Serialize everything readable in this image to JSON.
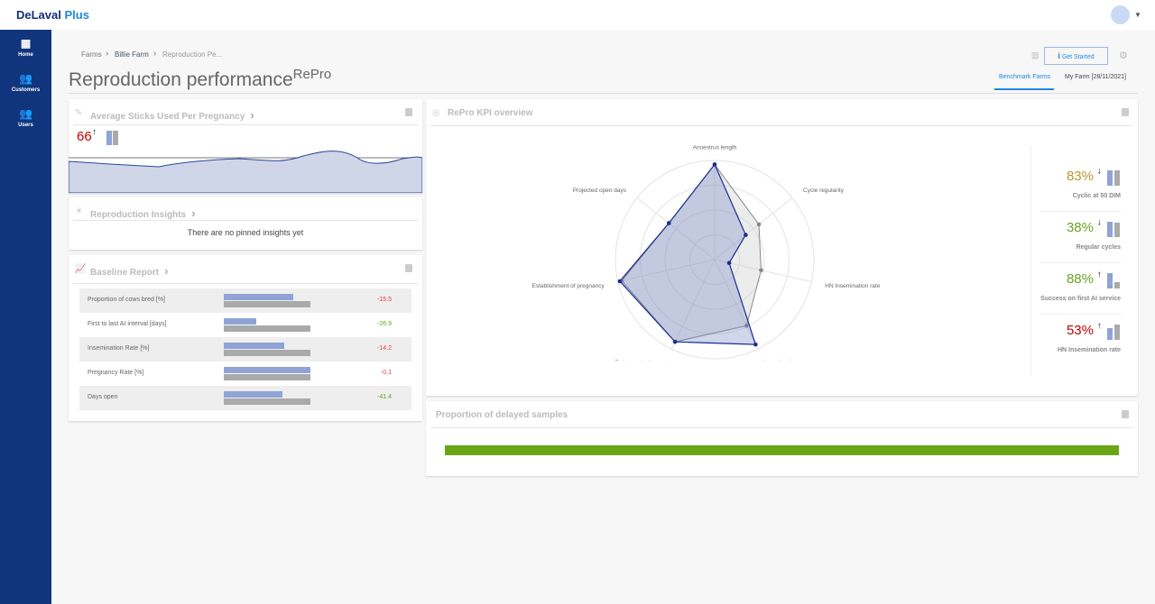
{
  "app": {
    "brand": "DeLaval",
    "brand_accent": "Plus"
  },
  "sidebar": {
    "items": [
      {
        "label": "Home",
        "icon": "grid-icon"
      },
      {
        "label": "Customers",
        "icon": "people-icon"
      },
      {
        "label": "Users",
        "icon": "people-icon"
      }
    ]
  },
  "breadcrumb": [
    "Farms",
    "Billie Farm",
    "Reproduction Pe..."
  ],
  "page": {
    "title": "Reproduction performance",
    "title_sup": "RePro"
  },
  "header": {
    "get_started": "Get Started",
    "tabs": [
      {
        "label": "Benchmark Farms",
        "active": true
      },
      {
        "label": "My Farm [28/11/2021]",
        "active": false
      }
    ]
  },
  "sticks": {
    "title": "Average Sticks Used Per Pregnancy",
    "value": "66",
    "trend": "up",
    "color": "#c00000"
  },
  "insights": {
    "title": "Reproduction Insights",
    "empty": "There are no pinned insights yet"
  },
  "baseline": {
    "title": "Baseline Report",
    "rows": [
      {
        "label": "Proportion of cows bred [%]",
        "farm": 0.8,
        "bench": 1,
        "value": "-15.5",
        "color": "#e53935"
      },
      {
        "label": "First to last AI interval [days]",
        "farm": 0.37,
        "bench": 1,
        "value": "-26.9",
        "color": "#6aa121"
      },
      {
        "label": "Insemination Rate [%]",
        "farm": 0.7,
        "bench": 1,
        "value": "-14.2",
        "color": "#e53935"
      },
      {
        "label": "Pregnancy Rate [%]",
        "farm": 1,
        "bench": 1,
        "value": "-0.1",
        "color": "#e53935"
      },
      {
        "label": "Days open",
        "farm": 0.68,
        "bench": 1,
        "value": "-41.4",
        "color": "#6aa121"
      }
    ]
  },
  "kpi": {
    "title": "RePro KPI overview",
    "cards": [
      {
        "value": "83%",
        "trend": "down",
        "label": "Cyclic at 50 DIM",
        "color": "#b8962e",
        "farm": 1,
        "bench": 1
      },
      {
        "value": "38%",
        "trend": "down",
        "label": "Regular cycles",
        "color": "#6aa121",
        "farm": 1,
        "bench": 0.95
      },
      {
        "value": "88%",
        "trend": "up",
        "label": "Success on first AI service",
        "color": "#6aa121",
        "farm": 1,
        "bench": 0.4
      },
      {
        "value": "53%",
        "trend": "up",
        "label": "HN Insemination rate",
        "color": "#c00000",
        "farm": 0.75,
        "bench": 1
      }
    ]
  },
  "chart_data": {
    "type": "radar",
    "axes": [
      "Anoestrus length",
      "Cycle regularity",
      "HN Insemination rate",
      "Insemination success",
      "Embryo attachment",
      "Establishment of pregnancy",
      "Projected open days"
    ],
    "series": [
      {
        "values": [
          0.96,
          0.4,
          0.15,
          0.95,
          0.92,
          0.98,
          0.59
        ],
        "color": "#1a2f8f"
      },
      {
        "values": [
          0.96,
          0.57,
          0.48,
          0.74,
          0.92,
          0.96,
          0.59
        ],
        "color": "#888888"
      }
    ],
    "rlim": [
      0,
      1
    ]
  },
  "delayed": {
    "title": "Proportion of delayed samples",
    "fill": 1,
    "color": "#6aa517"
  }
}
